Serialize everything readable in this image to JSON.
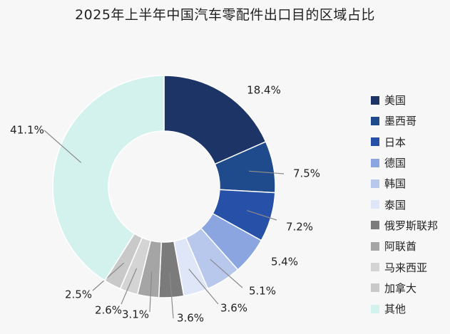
{
  "chart_data": {
    "type": "pie",
    "title": "2025年上半年中国汽车零配件出口目的区域占比",
    "unit": "%",
    "categories": [
      "美国",
      "墨西哥",
      "日本",
      "德国",
      "韩国",
      "泰国",
      "俄罗斯联邦",
      "阿联酋",
      "马来西亚",
      "加拿大",
      "其他"
    ],
    "values": [
      18.4,
      7.5,
      7.2,
      5.4,
      5.1,
      3.6,
      3.6,
      3.1,
      2.6,
      2.5,
      41.1
    ],
    "value_labels": [
      "18.4%",
      "7.5%",
      "7.2%",
      "5.4%",
      "5.1%",
      "3.6%",
      "3.6%",
      "3.1%",
      "2.6%",
      "2.5%",
      "41.1%"
    ],
    "colors": [
      "#1d3566",
      "#1f4a8c",
      "#2750a8",
      "#8aa5e0",
      "#b7c8ec",
      "#dfe6f7",
      "#7b7b7b",
      "#a5a5a5",
      "#d4d4d4",
      "#c9c9c9",
      "#d3f2ee"
    ],
    "legend_position": "right"
  }
}
